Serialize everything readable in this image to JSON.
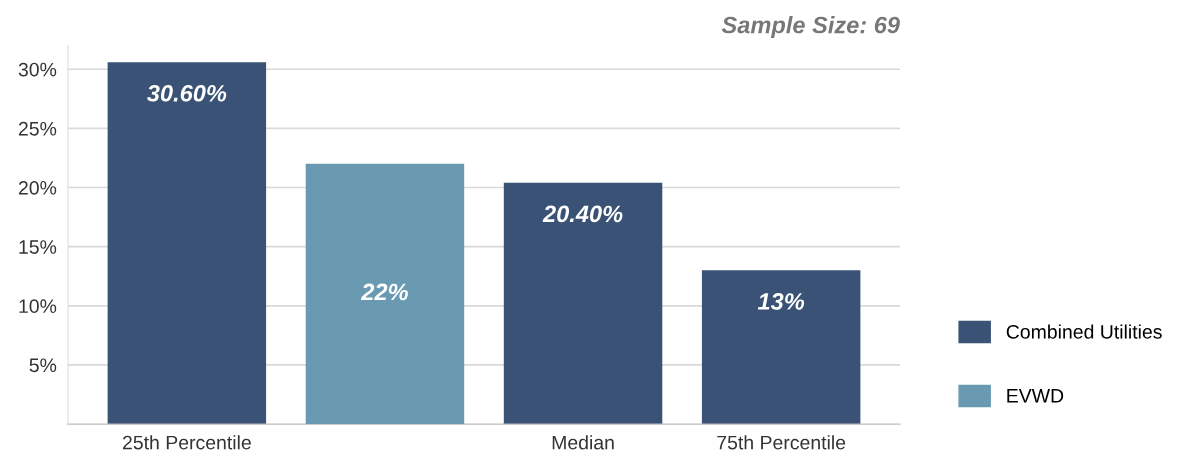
{
  "chart_data": {
    "type": "bar",
    "subtitle": "Sample Size: 69",
    "categories": [
      "25th Percentile",
      null,
      "Median",
      "75th Percentile"
    ],
    "series": [
      {
        "name": "Combined Utilities",
        "color": "#3a5275",
        "values": [
          30.6,
          null,
          20.4,
          13
        ],
        "value_labels": [
          "30.60%",
          null,
          "20.40%",
          "13%"
        ]
      },
      {
        "name": "EVWD",
        "color": "#6a9ab2",
        "values": [
          null,
          22,
          null,
          null
        ],
        "value_labels": [
          null,
          "22%",
          null,
          null
        ]
      }
    ],
    "ylim": [
      0,
      32
    ],
    "yticks": [
      {
        "value": 5,
        "label": "5%"
      },
      {
        "value": 10,
        "label": "10%"
      },
      {
        "value": 15,
        "label": "15%"
      },
      {
        "value": 20,
        "label": "20%"
      },
      {
        "value": 25,
        "label": "25%"
      },
      {
        "value": 30,
        "label": "30%"
      }
    ],
    "grid": "y",
    "legend": "right"
  }
}
